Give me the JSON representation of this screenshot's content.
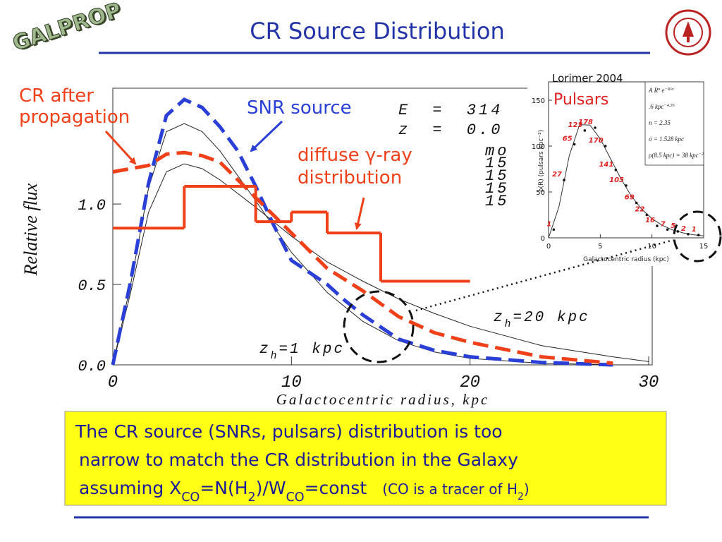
{
  "title": "CR Source Distribution",
  "logo": "GALPROP",
  "labels": {
    "cr": [
      "CR after",
      "propagation"
    ],
    "snr": "SNR source",
    "gamma": [
      "diffuse γ-ray",
      "distribution"
    ]
  },
  "note": {
    "lines": [
      "The CR source (SNRs, pulsars) distribution is too",
      "narrow to match the CR distribution in the Galaxy"
    ],
    "last": [
      {
        "t": "assuming X"
      },
      {
        "t": "CO",
        "sub": true
      },
      {
        "t": "=N(H"
      },
      {
        "t": "2",
        "sub": true
      },
      {
        "t": ")/W"
      },
      {
        "t": "CO",
        "sub": true
      },
      {
        "t": "=const"
      }
    ],
    "aside": [
      {
        "t": "(CO is a tracer of H"
      },
      {
        "t": "2",
        "sub": true
      },
      {
        "t": ")"
      }
    ]
  },
  "chart_data": [
    {
      "type": "line",
      "xlabel": "Galactocentric radius, kpc",
      "ylabel": "Relative flux",
      "xlim": [
        0,
        30
      ],
      "xticks": [
        0,
        10,
        20,
        30
      ],
      "ylim": [
        0,
        1.72
      ],
      "yticks": [
        {
          "value": 0,
          "label": "0.0"
        },
        {
          "value": 0.5,
          "label": "0.5"
        },
        {
          "value": 1,
          "label": "1.0"
        }
      ],
      "annotations": [
        "E = 314",
        "z = 0.0",
        "mo",
        "15",
        "15",
        "15",
        "15"
      ],
      "zh_labels": [
        [
          {
            "t": "z"
          },
          {
            "t": "h",
            "sub": true
          },
          {
            "t": "=20 kpc"
          }
        ],
        [
          {
            "t": "z"
          },
          {
            "t": "h",
            "sub": true
          },
          {
            "t": "=1 kpc"
          }
        ]
      ],
      "series": [
        {
          "style": "thin",
          "color": "#222222",
          "x": [
            0,
            1,
            2,
            3,
            4,
            5,
            6,
            8,
            10,
            12,
            14,
            16,
            18,
            20,
            24,
            28,
            30
          ],
          "values": [
            0,
            0.45,
            0.95,
            1.2,
            1.25,
            1.22,
            1.15,
            0.98,
            0.8,
            0.64,
            0.52,
            0.41,
            0.32,
            0.24,
            0.12,
            0.05,
            0.02
          ]
        },
        {
          "style": "thin",
          "color": "#222222",
          "x": [
            0,
            1,
            2,
            3,
            4,
            5,
            6,
            8,
            10,
            12,
            14,
            16,
            18,
            20,
            24,
            28,
            30
          ],
          "values": [
            0,
            0.5,
            1.1,
            1.45,
            1.5,
            1.45,
            1.33,
            1.02,
            0.7,
            0.45,
            0.27,
            0.15,
            0.08,
            0.04,
            0.01,
            0,
            0
          ]
        },
        {
          "style": "dashed",
          "color": "#2a3fd6",
          "x": [
            0,
            1,
            2,
            3,
            4,
            5,
            6,
            7,
            8,
            9,
            10,
            12,
            13,
            14,
            16,
            18,
            20,
            24,
            28
          ],
          "values": [
            0,
            0.52,
            1.13,
            1.55,
            1.65,
            1.6,
            1.48,
            1.33,
            1.11,
            0.87,
            0.65,
            0.5,
            0.4,
            0.31,
            0.16,
            0.09,
            0.05,
            0.015,
            0
          ]
        },
        {
          "style": "dashed",
          "color": "#f0401a",
          "x": [
            0,
            1,
            2,
            3,
            4,
            5,
            6,
            7,
            8,
            9,
            10,
            12,
            14,
            16,
            18,
            20,
            24,
            28
          ],
          "values": [
            1.2,
            1.22,
            1.24,
            1.31,
            1.32,
            1.3,
            1.26,
            1.15,
            1.04,
            0.93,
            0.82,
            0.6,
            0.46,
            0.3,
            0.2,
            0.14,
            0.05,
            0.01
          ]
        },
        {
          "style": "step",
          "color": "#f0401a",
          "bins": [
            0,
            4,
            8,
            10,
            12,
            15,
            20
          ],
          "values": [
            0.85,
            1.11,
            0.89,
            0.95,
            0.82,
            0.52
          ]
        }
      ]
    },
    {
      "type": "scatter",
      "source": "Lorimer 2004",
      "title": "Pulsars",
      "xlabel": "Galactocentric radius (kpc)",
      "ylabel": "ρ(R) (pulsars kpc⁻²)",
      "xlim": [
        0,
        15
      ],
      "xticks": [
        0,
        5,
        10,
        15
      ],
      "ylim": [
        0,
        170
      ],
      "yticks": [
        0,
        50,
        100,
        150
      ],
      "x": [
        0.5,
        1.5,
        2.5,
        3.5,
        4.5,
        5.5,
        6.5,
        7.5,
        8.5,
        9.5,
        10.5,
        11.5,
        12.5,
        13.5,
        14.5
      ],
      "values": [
        9,
        63,
        102,
        117,
        120,
        100,
        74,
        57,
        38,
        25,
        13,
        9,
        7,
        4,
        3
      ],
      "counts": [
        1,
        27,
        65,
        123,
        178,
        170,
        141,
        105,
        69,
        22,
        16,
        7,
        5,
        2,
        1
      ],
      "color": "#e02020",
      "curve": {
        "x": [
          0,
          1,
          2,
          3,
          4,
          5,
          6,
          7,
          8,
          9,
          10,
          11,
          12,
          13,
          14,
          15
        ],
        "values": [
          0,
          33.7,
          89.3,
          123.4,
          122.9,
          107.9,
          86.1,
          64.3,
          45.7,
          31.3,
          20.9,
          13.6,
          8.6,
          5.4,
          3.4,
          2.05
        ]
      },
      "fit_text": [
        [
          {
            "t": "A R"
          },
          {
            "t": "n",
            "sup": true
          },
          {
            "t": " e"
          },
          {
            "t": "−R/σ",
            "sup": true
          }
        ],
        [
          {
            "t": ".6 kpc"
          },
          {
            "t": "−4.35",
            "sup": true
          }
        ],
        [
          {
            "t": "n = 2.35"
          }
        ],
        [
          {
            "t": "σ = 1.528 kpc"
          }
        ],
        [
          {
            "t": "ρ(8.5 kpc) = 38 kpc"
          },
          {
            "t": "−2",
            "sup": true
          }
        ]
      ]
    }
  ]
}
